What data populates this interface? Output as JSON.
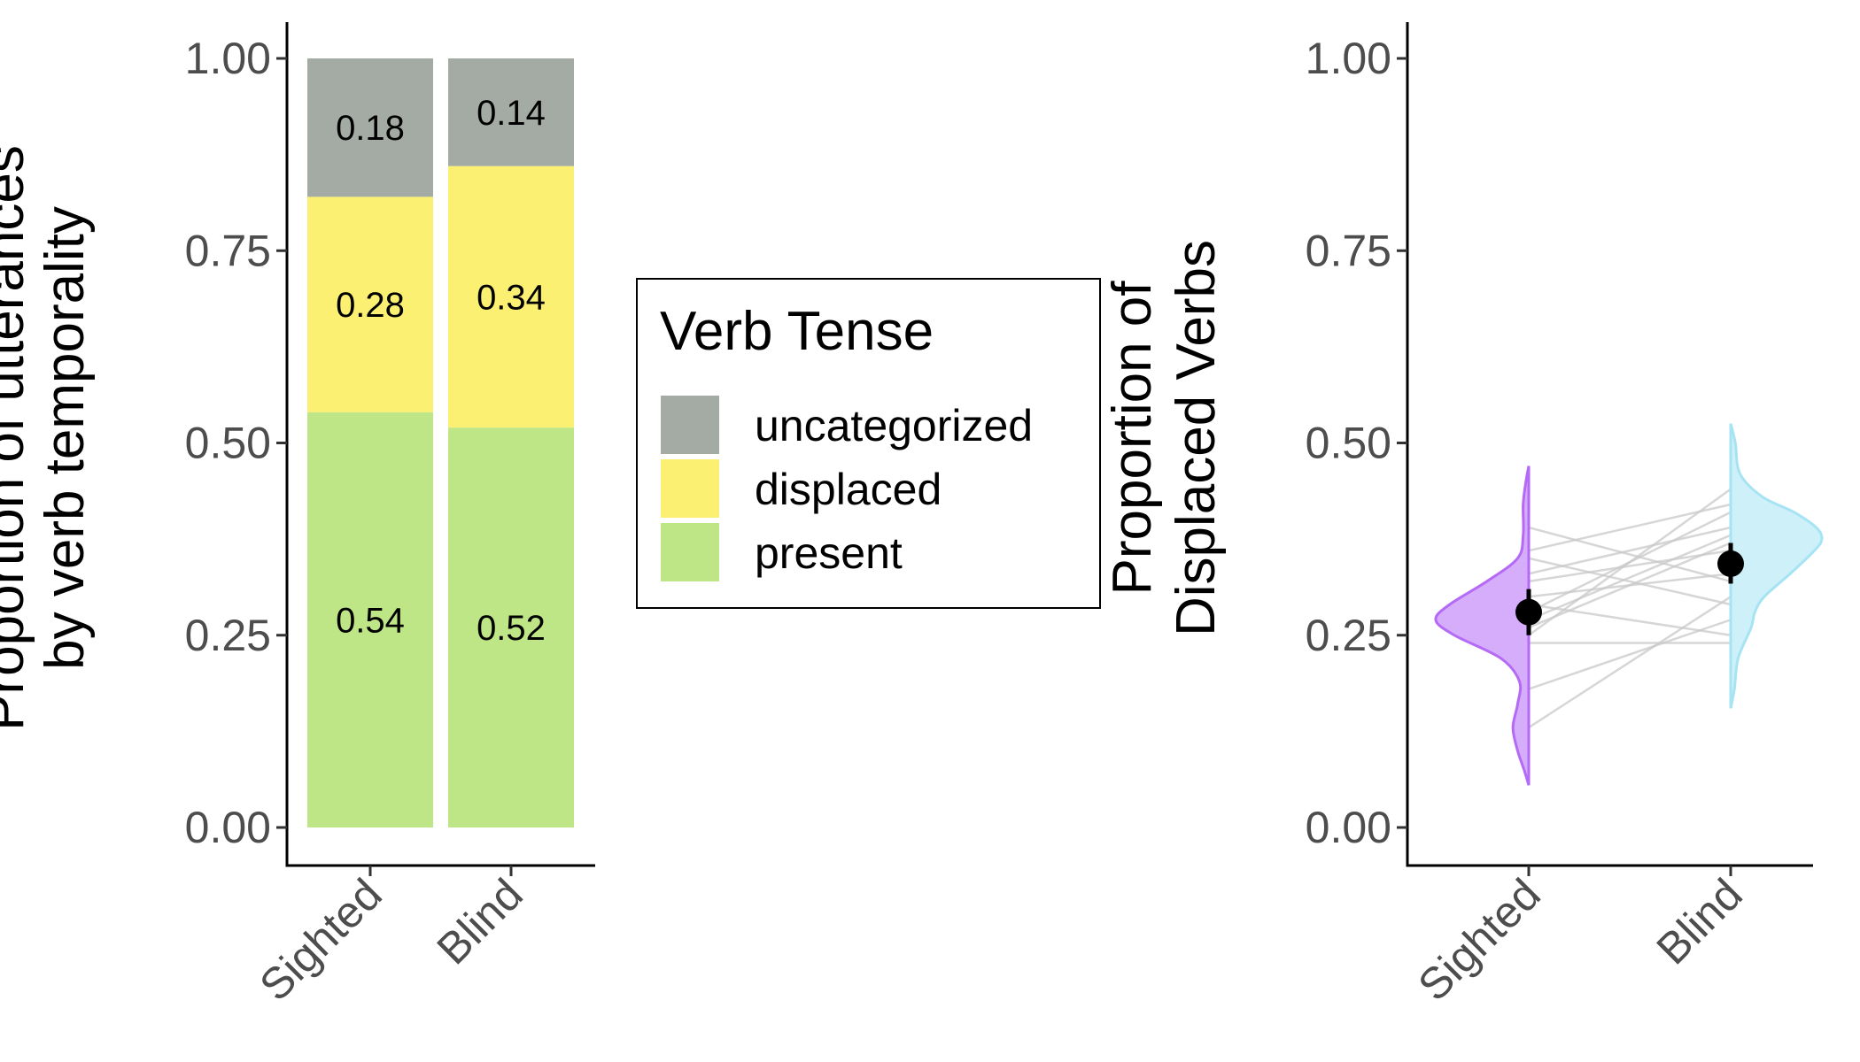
{
  "chart_data": [
    {
      "type": "bar",
      "stacked": true,
      "categories": [
        "Sighted",
        "Blind"
      ],
      "series": [
        {
          "name": "present",
          "values": [
            0.54,
            0.52
          ],
          "labels": [
            "0.54",
            "0.52"
          ],
          "color": "#bfe686"
        },
        {
          "name": "displaced",
          "values": [
            0.28,
            0.34
          ],
          "labels": [
            "0.28",
            "0.34"
          ],
          "color": "#fcf073"
        },
        {
          "name": "uncategorized",
          "values": [
            0.18,
            0.14
          ],
          "labels": [
            "0.18",
            "0.14"
          ],
          "color": "#a4aaa4"
        }
      ],
      "ylabel": "Proportion of utterances\nby verb temporality",
      "xlabel": "",
      "ylim": [
        0,
        1
      ],
      "yticks": [
        "0.00",
        "0.25",
        "0.50",
        "0.75",
        "1.00"
      ],
      "legend": {
        "title": "Verb Tense",
        "entries": [
          "uncategorized",
          "displaced",
          "present"
        ],
        "placement": "right"
      },
      "grid": false
    },
    {
      "type": "raincloud",
      "categories": [
        "Sighted",
        "Blind"
      ],
      "means": [
        0.28,
        0.343
      ],
      "error": [
        [
          0.25,
          0.31
        ],
        [
          0.317,
          0.37
        ]
      ],
      "colors": [
        "#b46af6",
        "#a6e3f3"
      ],
      "paired_lines": [
        [
          0.13,
          0.3
        ],
        [
          0.18,
          0.27
        ],
        [
          0.24,
          0.24
        ],
        [
          0.25,
          0.44
        ],
        [
          0.26,
          0.37
        ],
        [
          0.28,
          0.41
        ],
        [
          0.3,
          0.33
        ],
        [
          0.32,
          0.36
        ],
        [
          0.33,
          0.39
        ],
        [
          0.35,
          0.29
        ],
        [
          0.36,
          0.42
        ],
        [
          0.39,
          0.32
        ],
        [
          0.29,
          0.25
        ],
        [
          0.27,
          0.38
        ]
      ],
      "density": [
        {
          "side": "left",
          "min": 0.055,
          "max": 0.47,
          "profile": [
            [
              0.055,
              0.0
            ],
            [
              0.075,
              0.05
            ],
            [
              0.1,
              0.12
            ],
            [
              0.13,
              0.17
            ],
            [
              0.16,
              0.12
            ],
            [
              0.19,
              0.1
            ],
            [
              0.22,
              0.3
            ],
            [
              0.25,
              0.8
            ],
            [
              0.27,
              1.0
            ],
            [
              0.29,
              0.85
            ],
            [
              0.32,
              0.45
            ],
            [
              0.35,
              0.12
            ],
            [
              0.38,
              0.06
            ],
            [
              0.42,
              0.06
            ],
            [
              0.45,
              0.03
            ],
            [
              0.47,
              0.0
            ]
          ]
        },
        {
          "side": "right",
          "min": 0.155,
          "max": 0.525,
          "profile": [
            [
              0.155,
              0.0
            ],
            [
              0.18,
              0.04
            ],
            [
              0.22,
              0.08
            ],
            [
              0.26,
              0.22
            ],
            [
              0.28,
              0.26
            ],
            [
              0.3,
              0.36
            ],
            [
              0.33,
              0.64
            ],
            [
              0.36,
              0.9
            ],
            [
              0.375,
              0.98
            ],
            [
              0.39,
              0.92
            ],
            [
              0.41,
              0.68
            ],
            [
              0.43,
              0.34
            ],
            [
              0.46,
              0.1
            ],
            [
              0.5,
              0.05
            ],
            [
              0.525,
              0.0
            ]
          ]
        }
      ],
      "ylabel": "Proportion of\nDisplaced Verbs",
      "xlabel": "",
      "ylim": [
        0,
        1
      ],
      "yticks": [
        "0.00",
        "0.25",
        "0.50",
        "0.75",
        "1.00"
      ],
      "grid": false
    }
  ]
}
